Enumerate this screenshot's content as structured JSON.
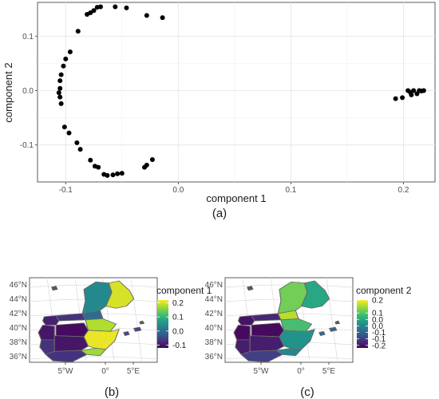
{
  "chart_data": [
    {
      "type": "scatter",
      "xlabel": "component 1",
      "ylabel": "component 2",
      "xticks": [
        "-0.1",
        "0.0",
        "0.1",
        "0.2"
      ],
      "xtick_values": [
        -0.1,
        0.0,
        0.1,
        0.2
      ],
      "yticks": [
        "-0.1",
        "0.0",
        "0.1"
      ],
      "ytick_values": [
        -0.1,
        0.0,
        0.1
      ],
      "xlim": [
        -0.125,
        0.228
      ],
      "ylim": [
        -0.168,
        0.162
      ],
      "grid": true,
      "point_color": "#000000",
      "panel_label": "(a)",
      "points": [
        {
          "x": -0.014,
          "y": 0.134
        },
        {
          "x": -0.028,
          "y": 0.138
        },
        {
          "x": -0.046,
          "y": 0.152
        },
        {
          "x": -0.056,
          "y": 0.154
        },
        {
          "x": -0.069,
          "y": 0.154
        },
        {
          "x": -0.072,
          "y": 0.153
        },
        {
          "x": -0.075,
          "y": 0.147
        },
        {
          "x": -0.078,
          "y": 0.143
        },
        {
          "x": -0.081,
          "y": 0.14
        },
        {
          "x": -0.089,
          "y": 0.109
        },
        {
          "x": -0.096,
          "y": 0.071
        },
        {
          "x": -0.1,
          "y": 0.058
        },
        {
          "x": -0.102,
          "y": 0.045
        },
        {
          "x": -0.104,
          "y": 0.029
        },
        {
          "x": -0.105,
          "y": 0.018
        },
        {
          "x": -0.105,
          "y": 0.004
        },
        {
          "x": -0.106,
          "y": -0.004
        },
        {
          "x": -0.105,
          "y": -0.012
        },
        {
          "x": -0.104,
          "y": -0.024
        },
        {
          "x": -0.101,
          "y": -0.067
        },
        {
          "x": -0.097,
          "y": -0.078
        },
        {
          "x": -0.09,
          "y": -0.096
        },
        {
          "x": -0.087,
          "y": -0.108
        },
        {
          "x": -0.078,
          "y": -0.128
        },
        {
          "x": -0.074,
          "y": -0.139
        },
        {
          "x": -0.071,
          "y": -0.141
        },
        {
          "x": -0.066,
          "y": -0.154
        },
        {
          "x": -0.063,
          "y": -0.156
        },
        {
          "x": -0.058,
          "y": -0.155
        },
        {
          "x": -0.054,
          "y": -0.153
        },
        {
          "x": -0.05,
          "y": -0.152
        },
        {
          "x": -0.03,
          "y": -0.141
        },
        {
          "x": -0.028,
          "y": -0.137
        },
        {
          "x": -0.023,
          "y": -0.127
        },
        {
          "x": 0.193,
          "y": -0.015
        },
        {
          "x": 0.199,
          "y": -0.013
        },
        {
          "x": 0.204,
          "y": 0.0
        },
        {
          "x": 0.206,
          "y": -0.003
        },
        {
          "x": 0.207,
          "y": -0.008
        },
        {
          "x": 0.209,
          "y": 0.0
        },
        {
          "x": 0.212,
          "y": -0.006
        },
        {
          "x": 0.214,
          "y": 0.0
        },
        {
          "x": 0.216,
          "y": -0.001
        },
        {
          "x": 0.218,
          "y": 0.0
        }
      ]
    },
    {
      "type": "heatmap",
      "panel_label": "(b)",
      "legend_title": "component 1",
      "legend_ticks": [
        "0.2",
        "0.1",
        "0.0",
        "-0.1"
      ],
      "legend_tick_values": [
        0.2,
        0.1,
        0.0,
        -0.1
      ],
      "scale_range": [
        -0.12,
        0.22
      ],
      "lat_labels": [
        "46°N",
        "44°N",
        "42°N",
        "40°N",
        "38°N",
        "36°N"
      ],
      "lon_labels": [
        "5°W",
        "0°",
        "5°E"
      ],
      "region_values": {
        "galicia": -0.09,
        "cantabria": -0.07,
        "pyrenees_west": 0.0,
        "southwest_france": 0.04,
        "alps": 0.2,
        "portugal_north": -0.1,
        "portugal_south": -0.07,
        "castilla": -0.11,
        "center": -0.1,
        "ebro": 0.18,
        "valencia": 0.21,
        "andalusia": -0.07,
        "murcia": 0.17,
        "balearic": -0.05
      }
    },
    {
      "type": "heatmap",
      "panel_label": "(c)",
      "legend_title": "component 2",
      "legend_ticks": [
        "0.2",
        "0.1",
        "0.0",
        "0.0",
        "-0.1",
        "-0.1",
        "-0.2"
      ],
      "legend_tick_values": [
        0.2,
        0.1,
        0.05,
        0.0,
        -0.05,
        -0.1,
        -0.15
      ],
      "scale_range": [
        -0.17,
        0.2
      ],
      "lat_labels": [
        "46°N",
        "44°N",
        "42°N",
        "40°N",
        "38°N",
        "36°N"
      ],
      "lon_labels": [
        "5°W",
        "0°",
        "5°E"
      ],
      "region_values": {
        "galicia": -0.15,
        "cantabria": -0.13,
        "pyrenees_west": 0.16,
        "southwest_france": 0.12,
        "alps": 0.05,
        "portugal_north": -0.16,
        "portugal_south": -0.14,
        "castilla": -0.16,
        "center": -0.14,
        "ebro": 0.09,
        "valencia": 0.02,
        "andalusia": -0.1,
        "murcia": 0.0,
        "balearic": -0.05
      }
    }
  ]
}
